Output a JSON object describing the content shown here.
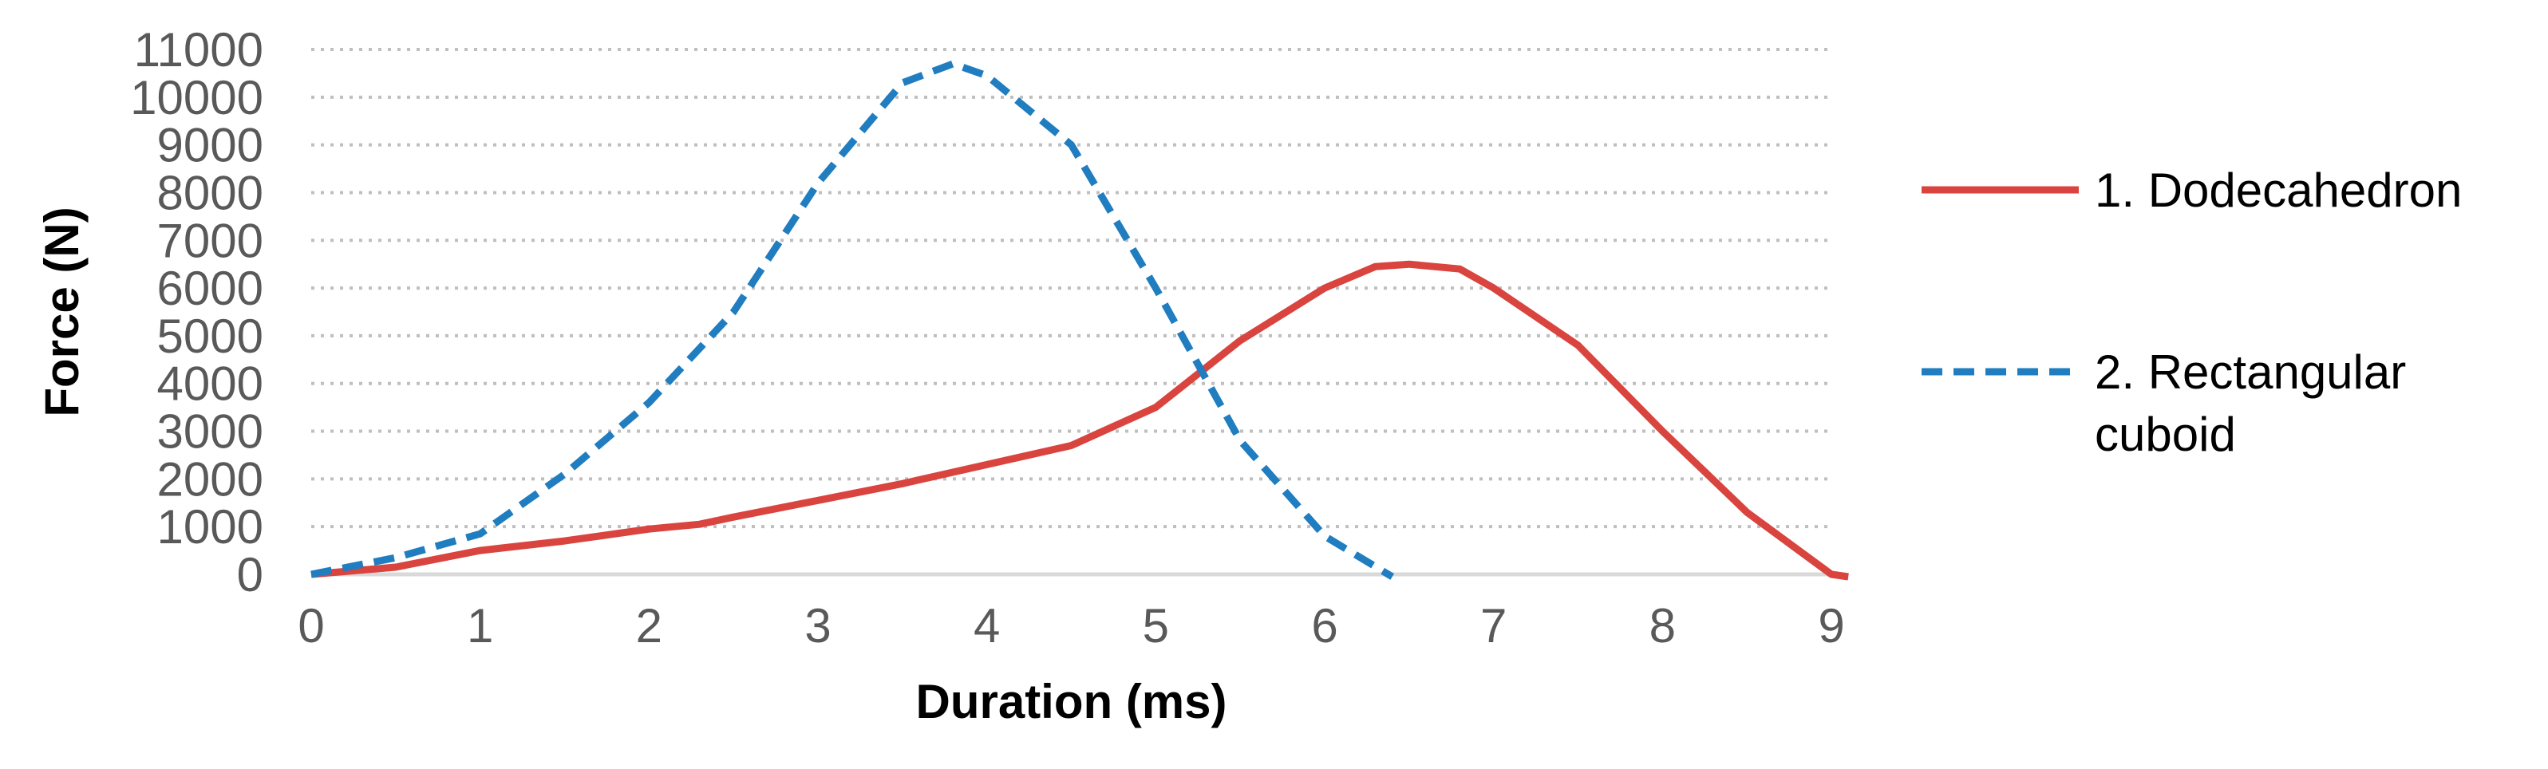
{
  "chart_data": {
    "type": "line",
    "title": "",
    "xlabel": "Duration (ms)",
    "ylabel": "Force (N)",
    "xlim": [
      0,
      9
    ],
    "ylim": [
      0,
      11000
    ],
    "xticks": [
      0,
      1,
      2,
      3,
      4,
      5,
      6,
      7,
      8,
      9
    ],
    "yticks": [
      0,
      1000,
      2000,
      3000,
      4000,
      5000,
      6000,
      7000,
      8000,
      9000,
      10000,
      11000
    ],
    "grid": "horizontal dotted",
    "legend_position": "right",
    "series": [
      {
        "name": "1. Dodecahedron",
        "color": "#D9443F",
        "style": "solid",
        "x": [
          0,
          0.5,
          1,
          1.5,
          2,
          2.3,
          2.5,
          3,
          3.5,
          4,
          4.5,
          5,
          5.5,
          6,
          6.3,
          6.5,
          6.8,
          7,
          7.5,
          8,
          8.5,
          9,
          9.1
        ],
        "y": [
          0,
          150,
          500,
          700,
          950,
          1050,
          1200,
          1550,
          1900,
          2300,
          2700,
          3500,
          4900,
          6000,
          6450,
          6500,
          6400,
          6000,
          4800,
          3000,
          1300,
          0,
          -50
        ]
      },
      {
        "name": "2. Rectangular cuboid",
        "color": "#1F7DC0",
        "style": "dashed",
        "x": [
          0,
          0.5,
          1,
          1.5,
          2,
          2.5,
          3,
          3.5,
          3.8,
          4,
          4.5,
          5,
          5.5,
          6,
          6.4
        ],
        "y": [
          0,
          350,
          850,
          2100,
          3600,
          5500,
          8200,
          10300,
          10700,
          10450,
          9000,
          6000,
          2800,
          800,
          -50
        ]
      }
    ]
  }
}
